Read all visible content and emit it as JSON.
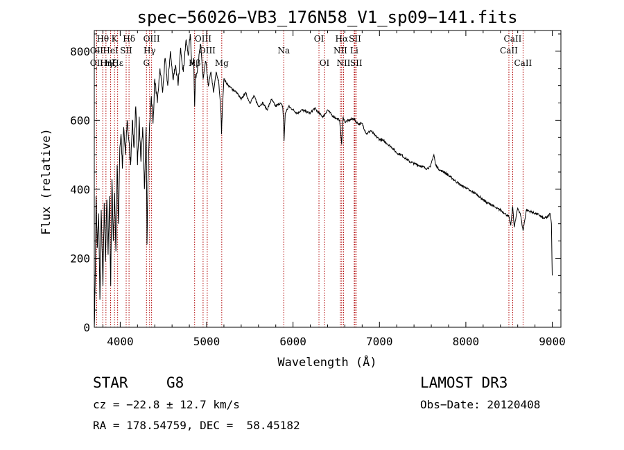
{
  "chart_data": {
    "type": "line",
    "title": "spec−56026−VB3_176N58_V1_sp09−141.fits",
    "xlabel": "Wavelength (Å)",
    "ylabel": "Flux (relative)",
    "xlim": [
      3700,
      9100
    ],
    "ylim": [
      0,
      860
    ],
    "xticks": [
      4000,
      5000,
      6000,
      7000,
      8000,
      9000
    ],
    "yticks": [
      0,
      200,
      400,
      600,
      800
    ],
    "series": [
      {
        "name": "flux",
        "x": [
          3700,
          3710,
          3720,
          3735,
          3750,
          3765,
          3780,
          3800,
          3815,
          3830,
          3845,
          3860,
          3875,
          3890,
          3905,
          3920,
          3935,
          3950,
          3965,
          3980,
          3995,
          4010,
          4025,
          4040,
          4060,
          4080,
          4100,
          4120,
          4140,
          4160,
          4180,
          4200,
          4220,
          4240,
          4260,
          4280,
          4300,
          4310,
          4320,
          4340,
          4360,
          4380,
          4400,
          4430,
          4460,
          4490,
          4520,
          4550,
          4580,
          4610,
          4640,
          4670,
          4700,
          4730,
          4760,
          4790,
          4810,
          4830,
          4850,
          4861,
          4870,
          4900,
          4930,
          4960,
          4990,
          5020,
          5050,
          5080,
          5110,
          5140,
          5167,
          5172,
          5183,
          5200,
          5250,
          5300,
          5350,
          5400,
          5450,
          5500,
          5550,
          5600,
          5650,
          5700,
          5750,
          5800,
          5850,
          5880,
          5890,
          5896,
          5910,
          5950,
          6000,
          6050,
          6100,
          6150,
          6200,
          6250,
          6300,
          6350,
          6400,
          6450,
          6500,
          6540,
          6563,
          6580,
          6600,
          6650,
          6700,
          6750,
          6800,
          6850,
          6900,
          6950,
          7000,
          7050,
          7100,
          7150,
          7200,
          7250,
          7300,
          7350,
          7400,
          7450,
          7500,
          7550,
          7590,
          7610,
          7630,
          7650,
          7700,
          7750,
          7800,
          7850,
          7900,
          7950,
          8000,
          8050,
          8100,
          8150,
          8200,
          8250,
          8300,
          8350,
          8400,
          8450,
          8498,
          8520,
          8542,
          8560,
          8600,
          8630,
          8662,
          8700,
          8750,
          8800,
          8850,
          8900,
          8950,
          8975,
          8990,
          9000
        ],
        "values": [
          0,
          120,
          380,
          230,
          330,
          80,
          340,
          120,
          360,
          190,
          370,
          210,
          380,
          120,
          430,
          250,
          390,
          220,
          470,
          300,
          520,
          560,
          460,
          580,
          500,
          600,
          540,
          470,
          600,
          520,
          640,
          470,
          610,
          480,
          580,
          400,
          580,
          240,
          420,
          590,
          670,
          590,
          720,
          650,
          750,
          680,
          780,
          700,
          800,
          720,
          760,
          700,
          810,
          740,
          830,
          790,
          850,
          760,
          780,
          640,
          720,
          760,
          820,
          720,
          770,
          700,
          740,
          680,
          740,
          710,
          620,
          560,
          640,
          720,
          700,
          690,
          680,
          660,
          680,
          650,
          670,
          640,
          650,
          630,
          660,
          640,
          650,
          640,
          600,
          540,
          620,
          640,
          630,
          620,
          630,
          625,
          620,
          635,
          620,
          610,
          630,
          615,
          605,
          600,
          530,
          610,
          595,
          600,
          605,
          590,
          590,
          560,
          570,
          555,
          545,
          540,
          530,
          520,
          505,
          500,
          490,
          480,
          475,
          470,
          465,
          460,
          465,
          485,
          500,
          470,
          455,
          450,
          440,
          430,
          420,
          410,
          405,
          395,
          390,
          380,
          370,
          360,
          355,
          345,
          340,
          330,
          320,
          295,
          350,
          290,
          345,
          330,
          280,
          340,
          335,
          330,
          325,
          315,
          320,
          330,
          300,
          150
        ]
      }
    ],
    "lines": [
      {
        "label": "Hθ",
        "x": 3798,
        "row": 0
      },
      {
        "label": "OII",
        "x": 3727,
        "row": 1
      },
      {
        "label": "OII",
        "x": 3727,
        "row": 2
      },
      {
        "label": "Hη",
        "x": 3835,
        "row": 2
      },
      {
        "label": "HeI",
        "x": 3889,
        "row": 1
      },
      {
        "label": "Hζ",
        "x": 3889,
        "row": 2
      },
      {
        "label": "K",
        "x": 3934,
        "row": 0
      },
      {
        "label": "SII",
        "x": 4069,
        "row": 1
      },
      {
        "label": "Hε",
        "x": 3970,
        "row": 2
      },
      {
        "label": "Hδ",
        "x": 4102,
        "row": 0
      },
      {
        "label": "OIII",
        "x": 4363,
        "row": 0
      },
      {
        "label": "Hγ",
        "x": 4340,
        "row": 1
      },
      {
        "label": "G",
        "x": 4304,
        "row": 2
      },
      {
        "label": "OIII",
        "x": 4959,
        "row": 0
      },
      {
        "label": "OIII",
        "x": 5007,
        "row": 1
      },
      {
        "label": "Hβ",
        "x": 4861,
        "row": 2
      },
      {
        "label": "Mg",
        "x": 5175,
        "row": 2
      },
      {
        "label": "Na",
        "x": 5893,
        "row": 1
      },
      {
        "label": "OI",
        "x": 6300,
        "row": 0
      },
      {
        "label": "OI",
        "x": 6364,
        "row": 2
      },
      {
        "label": "Hα",
        "x": 6563,
        "row": 0
      },
      {
        "label": "NII",
        "x": 6548,
        "row": 1
      },
      {
        "label": "NII",
        "x": 6584,
        "row": 2
      },
      {
        "label": "SII",
        "x": 6717,
        "row": 0
      },
      {
        "label": "Li",
        "x": 6708,
        "row": 1
      },
      {
        "label": "SII",
        "x": 6731,
        "row": 2
      },
      {
        "label": "CaII",
        "x": 8542,
        "row": 0
      },
      {
        "label": "CaII",
        "x": 8498,
        "row": 1
      },
      {
        "label": "CaII",
        "x": 8662,
        "row": 2
      }
    ]
  },
  "info": {
    "class_label": "STAR",
    "subclass": "G8",
    "survey": "LAMOST DR3",
    "redshift": "cz = −22.8 ± 12.7 km/s",
    "obs_date": "Obs−Date: 20120408",
    "coords": "RA = 178.54759, DEC =  58.45182"
  }
}
